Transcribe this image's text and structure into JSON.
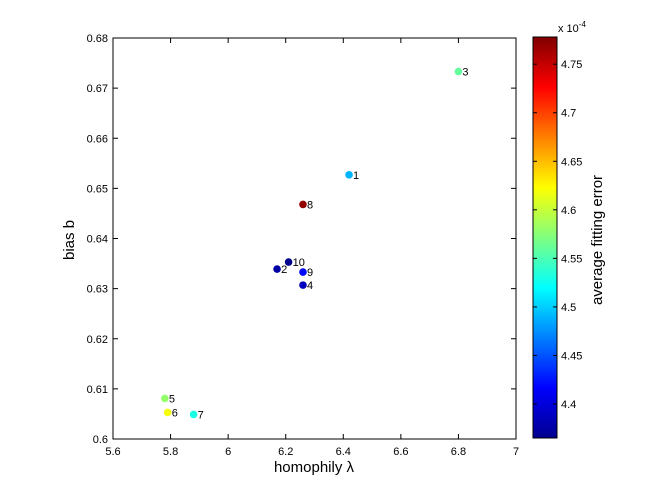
{
  "chart_data": {
    "type": "scatter",
    "xlabel": "homophily λ",
    "ylabel": "bias b",
    "xlim": [
      5.6,
      7
    ],
    "ylim": [
      0.6,
      0.68
    ],
    "xticks": [
      "5.6",
      "5.8",
      "6",
      "6.2",
      "6.4",
      "6.6",
      "6.8",
      "7"
    ],
    "xtick_values": [
      5.6,
      5.8,
      6.0,
      6.2,
      6.4,
      6.6,
      6.8,
      7.0
    ],
    "yticks": [
      "0.6",
      "0.61",
      "0.62",
      "0.63",
      "0.64",
      "0.65",
      "0.66",
      "0.67",
      "0.68"
    ],
    "ytick_values": [
      0.6,
      0.61,
      0.62,
      0.63,
      0.64,
      0.65,
      0.66,
      0.67,
      0.68
    ],
    "points": [
      {
        "label": "1",
        "x": 6.42,
        "y": 0.6527,
        "c": 4.49
      },
      {
        "label": "2",
        "x": 6.17,
        "y": 0.6339,
        "c": 4.38
      },
      {
        "label": "3",
        "x": 6.8,
        "y": 0.6733,
        "c": 4.56
      },
      {
        "label": "4",
        "x": 6.26,
        "y": 0.6307,
        "c": 4.39
      },
      {
        "label": "5",
        "x": 5.78,
        "y": 0.6081,
        "c": 4.58
      },
      {
        "label": "6",
        "x": 5.79,
        "y": 0.6053,
        "c": 4.62
      },
      {
        "label": "7",
        "x": 5.88,
        "y": 0.6049,
        "c": 4.53
      },
      {
        "label": "8",
        "x": 6.26,
        "y": 0.6468,
        "c": 4.77
      },
      {
        "label": "9",
        "x": 6.26,
        "y": 0.6333,
        "c": 4.42
      },
      {
        "label": "10",
        "x": 6.21,
        "y": 0.6353,
        "c": 4.37
      }
    ],
    "colorbar": {
      "label": "average fitting error",
      "multiplier": "x 10",
      "exponent": "-4",
      "range": [
        4.365,
        4.778
      ],
      "ticks": [
        "4.4",
        "4.45",
        "4.5",
        "4.55",
        "4.6",
        "4.65",
        "4.7",
        "4.75"
      ],
      "tick_values": [
        4.4,
        4.45,
        4.5,
        4.55,
        4.6,
        4.65,
        4.7,
        4.75
      ],
      "colormap": "jet"
    }
  }
}
